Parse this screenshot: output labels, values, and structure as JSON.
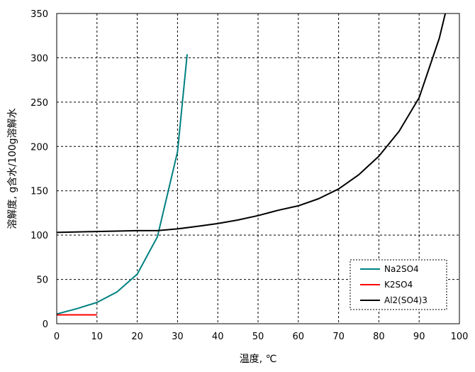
{
  "chart_data": {
    "type": "line",
    "title": "",
    "xlabel": "温度, ℃",
    "ylabel": "溶解度, g含水/100g溶解水",
    "xlim": [
      0,
      100
    ],
    "ylim": [
      0,
      350
    ],
    "xticks": [
      0,
      10,
      20,
      30,
      40,
      50,
      60,
      70,
      80,
      90,
      100
    ],
    "yticks": [
      0,
      50,
      100,
      150,
      200,
      250,
      300,
      350
    ],
    "grid": true,
    "legend_position": "bottom-right",
    "series": [
      {
        "name": "Na2SO4",
        "color": "#008080",
        "x": [
          0,
          5,
          10,
          15,
          20,
          25,
          30,
          32.4
        ],
        "y": [
          11,
          17,
          24,
          36,
          56,
          98,
          194,
          304
        ]
      },
      {
        "name": "K2SO4",
        "color": "#ff0000",
        "x": [
          0,
          10
        ],
        "y": [
          10,
          10
        ]
      },
      {
        "name": "Al2(SO4)3",
        "color": "#000000",
        "x": [
          0,
          10,
          20,
          25,
          30,
          35,
          40,
          45,
          50,
          55,
          60,
          65,
          70,
          75,
          80,
          85,
          90,
          95,
          96.5
        ],
        "y": [
          103,
          104,
          105,
          105,
          107,
          110,
          113,
          117,
          122,
          128,
          133,
          141,
          152,
          168,
          189,
          217,
          255,
          322,
          350
        ]
      }
    ]
  }
}
